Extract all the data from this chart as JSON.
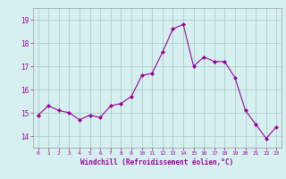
{
  "x": [
    0,
    1,
    2,
    3,
    4,
    5,
    6,
    7,
    8,
    9,
    10,
    11,
    12,
    13,
    14,
    15,
    16,
    17,
    18,
    19,
    20,
    21,
    22,
    23
  ],
  "y": [
    14.9,
    15.3,
    15.1,
    15.0,
    14.7,
    14.9,
    14.8,
    15.3,
    15.4,
    15.7,
    16.6,
    16.7,
    17.6,
    18.6,
    18.8,
    17.0,
    17.4,
    17.2,
    17.2,
    16.5,
    15.1,
    14.5,
    13.9,
    14.4
  ],
  "line_color": "#990099",
  "marker": "D",
  "marker_size": 2.0,
  "bg_color": "#d6f0f0",
  "grid_color": "#aacccc",
  "xlabel": "Windchill (Refroidissement éolien,°C)",
  "xlabel_color": "#990099",
  "tick_color": "#990099",
  "ylim": [
    13.5,
    19.5
  ],
  "xlim": [
    -0.5,
    23.5
  ],
  "yticks": [
    14,
    15,
    16,
    17,
    18,
    19
  ],
  "xticks": [
    0,
    1,
    2,
    3,
    4,
    5,
    6,
    7,
    8,
    9,
    10,
    11,
    12,
    13,
    14,
    15,
    16,
    17,
    18,
    19,
    20,
    21,
    22,
    23
  ]
}
